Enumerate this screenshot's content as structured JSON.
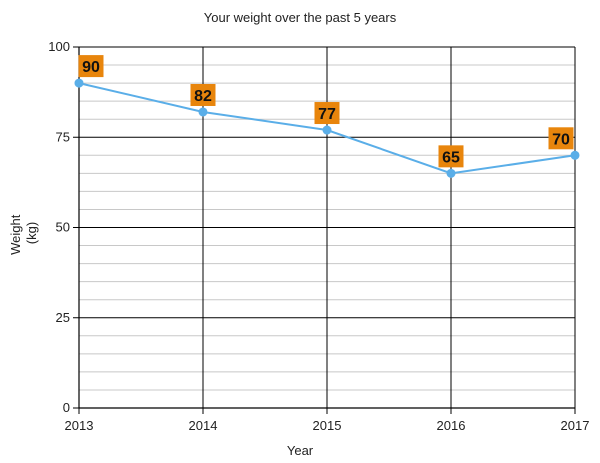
{
  "chart_data": {
    "type": "line",
    "title": "Your weight over the past 5 years",
    "xlabel": "Year",
    "ylabel_lines": [
      "Weight",
      "(kg)"
    ],
    "x": [
      "2013",
      "2014",
      "2015",
      "2016",
      "2017"
    ],
    "series": [
      {
        "values": [
          90,
          82,
          77,
          65,
          70
        ],
        "color": "#5aaee8"
      }
    ],
    "ylim": [
      0,
      100
    ],
    "y_ticks": [
      0,
      25,
      50,
      75,
      100
    ],
    "minor_step": 5,
    "grid": true,
    "data_labels": [
      "90",
      "82",
      "77",
      "65",
      "70"
    ],
    "label_bg_color": "#e8850c",
    "major_grid_color": "#000000",
    "minor_grid_color": "#c8c8c8"
  }
}
